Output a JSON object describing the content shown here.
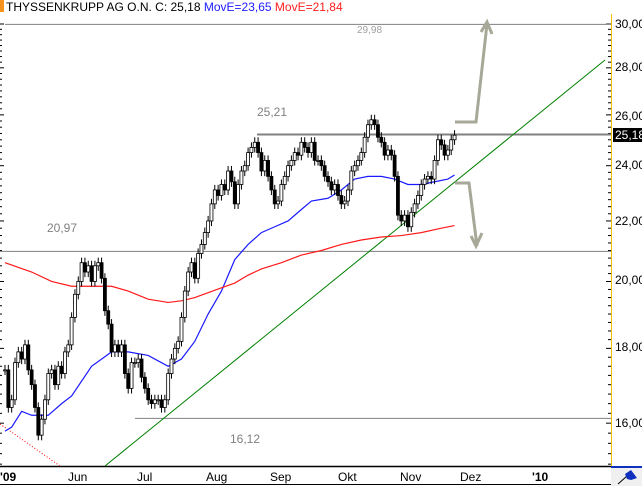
{
  "header": {
    "instrument": "THYSSENKRUPP AG O.N. C: 25,18",
    "ma1_label": "MovE=23,65",
    "ma2_label": "MovE=21,84"
  },
  "colors": {
    "ma1": "#1a1aff",
    "ma2": "#ff1a1a",
    "trendline": "#008000",
    "levels": "#808080",
    "arrows": "#a8a898",
    "axis_border": "#f0c000"
  },
  "chart_data": {
    "type": "candlestick",
    "y_scale": "log",
    "ylim": [
      14.9,
      30.4
    ],
    "y_ticks": [
      "30,00",
      "28,00",
      "26,00",
      "24,00",
      "22,00",
      "20,00",
      "18,00",
      "16,00"
    ],
    "x_ticks": [
      "'09",
      "Jun",
      "Jul",
      "Aug",
      "Sep",
      "Okt",
      "Nov",
      "Dez",
      "'10"
    ],
    "last_price": "25,18",
    "closes": [
      17.4,
      16.4,
      16.6,
      17.6,
      17.9,
      17.7,
      18.1,
      17.4,
      17.0,
      16.4,
      15.7,
      16.1,
      16.6,
      17.3,
      17.4,
      17.0,
      17.5,
      17.3,
      17.9,
      18.1,
      18.9,
      19.6,
      20.0,
      20.6,
      20.3,
      20.5,
      20.0,
      20.5,
      20.6,
      20.1,
      19.1,
      18.7,
      17.9,
      18.1,
      17.9,
      18.1,
      17.3,
      16.9,
      17.6,
      17.6,
      17.7,
      17.2,
      16.9,
      16.6,
      16.5,
      16.6,
      16.6,
      16.4,
      16.6,
      17.3,
      17.7,
      18.0,
      18.2,
      18.9,
      19.7,
      20.3,
      20.6,
      20.1,
      20.9,
      21.2,
      21.6,
      22.0,
      22.6,
      23.1,
      22.9,
      23.3,
      23.1,
      23.8,
      23.4,
      22.6,
      23.3,
      23.8,
      24.0,
      24.5,
      24.7,
      24.9,
      24.5,
      23.8,
      24.2,
      23.6,
      23.1,
      22.6,
      22.7,
      23.3,
      23.6,
      24.0,
      24.2,
      24.5,
      24.4,
      24.9,
      24.7,
      24.5,
      24.9,
      24.2,
      24.2,
      24.0,
      23.6,
      23.4,
      23.1,
      23.3,
      22.9,
      22.6,
      22.7,
      23.1,
      23.8,
      24.0,
      24.2,
      24.5,
      25.1,
      25.6,
      25.8,
      25.6,
      25.1,
      24.9,
      24.4,
      24.6,
      24.4,
      23.6,
      22.2,
      22.0,
      22.2,
      21.8,
      22.3,
      22.6,
      22.9,
      23.3,
      23.5,
      23.6,
      23.5,
      24.2,
      25.0,
      24.8,
      24.4,
      24.6,
      25.0,
      25.18
    ],
    "series": [
      {
        "name": "MovE=23,65",
        "points": [
          [
            0,
            15.8
          ],
          [
            2,
            15.9
          ],
          [
            5,
            16.3
          ],
          [
            8,
            16.2
          ],
          [
            13,
            16.2
          ],
          [
            17,
            16.5
          ],
          [
            20,
            16.7
          ],
          [
            26,
            17.5
          ],
          [
            32,
            17.9
          ],
          [
            37,
            17.9
          ],
          [
            43,
            17.8
          ],
          [
            49,
            17.5
          ],
          [
            53,
            17.7
          ],
          [
            57,
            18.2
          ],
          [
            61,
            19.0
          ],
          [
            65,
            19.7
          ],
          [
            69,
            20.7
          ],
          [
            73,
            21.2
          ],
          [
            77,
            21.6
          ],
          [
            81,
            21.8
          ],
          [
            85,
            22.0
          ],
          [
            89,
            22.4
          ],
          [
            92,
            22.7
          ],
          [
            97,
            22.8
          ],
          [
            101,
            23.1
          ],
          [
            105,
            23.5
          ],
          [
            109,
            23.6
          ],
          [
            113,
            23.6
          ],
          [
            117,
            23.5
          ],
          [
            121,
            23.3
          ],
          [
            125,
            23.3
          ],
          [
            129,
            23.4
          ],
          [
            133,
            23.5
          ],
          [
            135,
            23.65
          ]
        ]
      },
      {
        "name": "MovE=21,84",
        "points": [
          [
            0,
            20.6
          ],
          [
            8,
            20.3
          ],
          [
            14,
            20.0
          ],
          [
            20,
            19.85
          ],
          [
            26,
            19.85
          ],
          [
            32,
            19.85
          ],
          [
            37,
            19.7
          ],
          [
            43,
            19.45
          ],
          [
            49,
            19.35
          ],
          [
            53,
            19.4
          ],
          [
            57,
            19.5
          ],
          [
            61,
            19.65
          ],
          [
            65,
            19.8
          ],
          [
            69,
            19.95
          ],
          [
            73,
            20.2
          ],
          [
            77,
            20.4
          ],
          [
            83,
            20.6
          ],
          [
            89,
            20.85
          ],
          [
            95,
            21.0
          ],
          [
            101,
            21.2
          ],
          [
            107,
            21.35
          ],
          [
            113,
            21.45
          ],
          [
            119,
            21.5
          ],
          [
            125,
            21.6
          ],
          [
            131,
            21.75
          ],
          [
            135,
            21.84
          ]
        ]
      }
    ],
    "levels": [
      {
        "value": 29.98,
        "label": "29,98"
      },
      {
        "value": 25.21,
        "label": "25,21"
      },
      {
        "value": 20.97,
        "label": "20,97"
      },
      {
        "value": 16.12,
        "label": "16,12"
      }
    ]
  }
}
